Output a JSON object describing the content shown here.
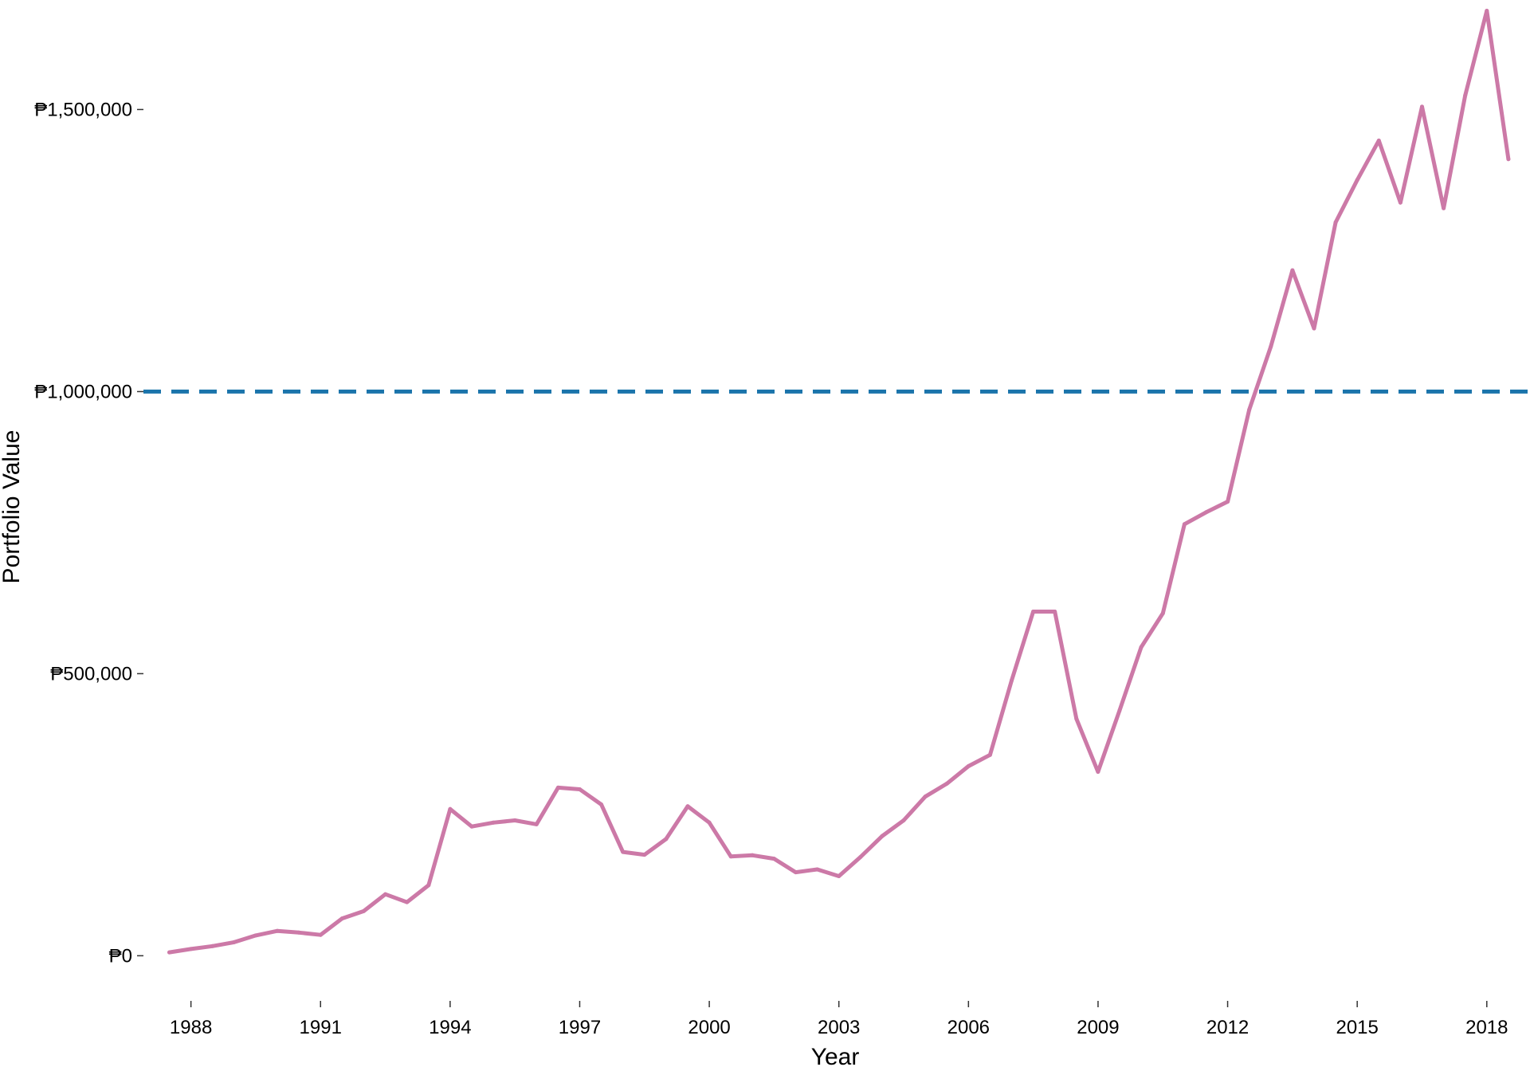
{
  "chart_data": {
    "type": "line",
    "xlabel": "Year",
    "ylabel": "Portfolio Value",
    "xlim": [
      1986.9,
      2019.0
    ],
    "ylim": [
      -80000,
      1680000
    ],
    "x_ticks": [
      {
        "value": 1988,
        "label": "1988"
      },
      {
        "value": 1991,
        "label": "1991"
      },
      {
        "value": 1994,
        "label": "1994"
      },
      {
        "value": 1997,
        "label": "1997"
      },
      {
        "value": 2000,
        "label": "2000"
      },
      {
        "value": 2003,
        "label": "2003"
      },
      {
        "value": 2006,
        "label": "2006"
      },
      {
        "value": 2009,
        "label": "2009"
      },
      {
        "value": 2012,
        "label": "2012"
      },
      {
        "value": 2015,
        "label": "2015"
      },
      {
        "value": 2018,
        "label": "2018"
      }
    ],
    "y_ticks": [
      {
        "value": 0,
        "label": "₱0"
      },
      {
        "value": 500000,
        "label": "₱500,000"
      },
      {
        "value": 1000000,
        "label": "₱1,000,000"
      },
      {
        "value": 1500000,
        "label": "₱1,500,000"
      }
    ],
    "grid": false,
    "reference_line": {
      "y": 1000000,
      "style": "dashed",
      "color": "#1a74ab"
    },
    "series": [
      {
        "color": "#cc79a7",
        "x": [
          1987.5,
          1988,
          1988.5,
          1989,
          1989.5,
          1990,
          1990.5,
          1991,
          1991.5,
          1992,
          1992.5,
          1993,
          1993.5,
          1994,
          1994.5,
          1995,
          1995.5,
          1996,
          1996.5,
          1997,
          1997.5,
          1998,
          1998.5,
          1999,
          1999.5,
          2000,
          2000.5,
          2001,
          2001.5,
          2002,
          2002.5,
          2003,
          2003.5,
          2004,
          2004.5,
          2005,
          2005.5,
          2006,
          2006.5,
          2007,
          2007.5,
          2008,
          2008.5,
          2009,
          2009.5,
          2010,
          2010.5,
          2011,
          2011.5,
          2012,
          2012.5,
          2013,
          2013.5,
          2014,
          2014.5,
          2015,
          2015.5,
          2016,
          2016.5,
          2017,
          2017.5,
          2018,
          2018.5
        ],
        "y": [
          6000,
          12000,
          17000,
          24000,
          36000,
          44000,
          41000,
          37000,
          66000,
          79000,
          109000,
          95000,
          125000,
          260000,
          229000,
          236000,
          240000,
          233000,
          298000,
          295000,
          268000,
          184000,
          179000,
          207000,
          265000,
          236000,
          176000,
          178000,
          172000,
          148000,
          153000,
          141000,
          175000,
          212000,
          240000,
          282000,
          305000,
          336000,
          356000,
          488000,
          610000,
          610000,
          420000,
          326000,
          435000,
          547000,
          607000,
          765000,
          786000,
          805000,
          968000,
          1080000,
          1215000,
          1112000,
          1300000,
          1375000,
          1445000,
          1335000,
          1505000,
          1325000,
          1525000,
          1675000,
          1412000
        ]
      }
    ]
  }
}
